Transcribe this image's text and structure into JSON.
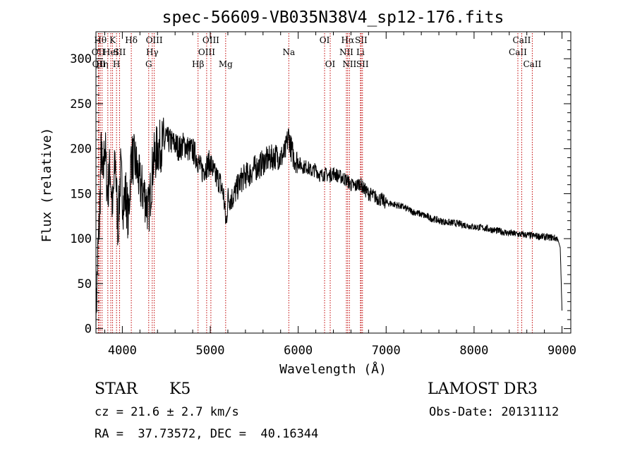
{
  "chart_data": {
    "type": "line",
    "title": "spec-56609-VB035N38V4_sp12-176.fits",
    "xlabel": "Wavelength (Å)",
    "ylabel": "Flux (relative)",
    "xlim": [
      3700,
      9100
    ],
    "ylim": [
      -5,
      330
    ],
    "x_ticks": [
      4000,
      5000,
      6000,
      7000,
      8000,
      9000
    ],
    "y_ticks": [
      0,
      50,
      100,
      150,
      200,
      250,
      300
    ],
    "grid": false,
    "line_color": "#000000",
    "marker_color": "#c00000",
    "series": [
      {
        "x": [
          3700,
          3720,
          3740,
          3760,
          3780,
          3800,
          3830,
          3860,
          3890,
          3920,
          3950,
          3980,
          4010,
          4040,
          4070,
          4100,
          4150,
          4200,
          4250,
          4300,
          4350,
          4400,
          4450,
          4500,
          4550,
          4600,
          4650,
          4700,
          4750,
          4800,
          4850,
          4900,
          4950,
          5000,
          5050,
          5100,
          5150,
          5180,
          5200,
          5250,
          5300,
          5350,
          5400,
          5450,
          5500,
          5550,
          5600,
          5650,
          5700,
          5750,
          5800,
          5850,
          5890,
          5920,
          5950,
          6000,
          6050,
          6100,
          6150,
          6200,
          6250,
          6300,
          6350,
          6400,
          6450,
          6500,
          6550,
          6600,
          6650,
          6700,
          6750,
          6800,
          6850,
          6900,
          6950,
          7000,
          7100,
          7200,
          7300,
          7400,
          7500,
          7600,
          7700,
          7800,
          7900,
          8000,
          8100,
          8200,
          8300,
          8400,
          8500,
          8600,
          8700,
          8800,
          8900,
          8950,
          8980,
          9000
        ],
        "y": [
          10,
          80,
          120,
          200,
          160,
          210,
          150,
          180,
          130,
          190,
          110,
          175,
          140,
          150,
          120,
          190,
          185,
          160,
          150,
          130,
          185,
          200,
          205,
          210,
          208,
          205,
          200,
          205,
          200,
          198,
          190,
          175,
          180,
          185,
          170,
          165,
          150,
          115,
          145,
          145,
          155,
          165,
          170,
          172,
          178,
          180,
          185,
          188,
          190,
          192,
          190,
          195,
          215,
          200,
          190,
          185,
          180,
          180,
          175,
          177,
          170,
          172,
          170,
          173,
          170,
          168,
          165,
          160,
          158,
          162,
          155,
          150,
          148,
          145,
          143,
          140,
          138,
          135,
          130,
          127,
          123,
          120,
          118,
          117,
          115,
          113,
          112,
          110,
          108,
          106,
          105,
          104,
          103,
          102,
          101,
          100,
          90,
          20
        ]
      }
    ],
    "lines": [
      {
        "x": 3727,
        "labels": [
          "OII"
        ],
        "rows": [
          1
        ]
      },
      {
        "x": 3734,
        "labels": [
          "OII"
        ],
        "rows": [
          2
        ]
      },
      {
        "x": 3750,
        "labels": [
          "Hθ"
        ],
        "rows": [
          0
        ]
      },
      {
        "x": 3770,
        "labels": [
          "Hη"
        ],
        "rows": [
          2
        ]
      },
      {
        "x": 3835,
        "labels": [
          "Hη"
        ],
        "rows": []
      },
      {
        "x": 3869,
        "labels": [
          "HeI"
        ],
        "rows": [
          1
        ]
      },
      {
        "x": 3889,
        "labels": [
          "K"
        ],
        "rows": [
          0
        ]
      },
      {
        "x": 3934,
        "labels": [
          "H"
        ],
        "rows": [
          2
        ]
      },
      {
        "x": 3969,
        "labels": [
          "SII"
        ],
        "rows": [
          1
        ]
      },
      {
        "x": 4102,
        "labels": [
          "Hδ"
        ],
        "rows": [
          0
        ]
      },
      {
        "x": 4300,
        "labels": [
          "G"
        ],
        "rows": [
          2
        ]
      },
      {
        "x": 4340,
        "labels": [
          "Hγ"
        ],
        "rows": [
          1
        ]
      },
      {
        "x": 4363,
        "labels": [
          "OIII"
        ],
        "rows": [
          0
        ]
      },
      {
        "x": 4861,
        "labels": [
          "Hβ"
        ],
        "rows": [
          2
        ]
      },
      {
        "x": 4959,
        "labels": [
          "OIII"
        ],
        "rows": [
          1
        ]
      },
      {
        "x": 5007,
        "labels": [
          "OIII"
        ],
        "rows": [
          0
        ]
      },
      {
        "x": 5175,
        "labels": [
          "Mg"
        ],
        "rows": [
          2
        ]
      },
      {
        "x": 5893,
        "labels": [
          "Na"
        ],
        "rows": [
          1
        ]
      },
      {
        "x": 6300,
        "labels": [
          "OI"
        ],
        "rows": [
          0
        ]
      },
      {
        "x": 6364,
        "labels": [
          "OI"
        ],
        "rows": [
          2
        ]
      },
      {
        "x": 6548,
        "labels": [
          "NII"
        ],
        "rows": [
          1
        ]
      },
      {
        "x": 6563,
        "labels": [
          "Hα"
        ],
        "rows": [
          0
        ]
      },
      {
        "x": 6583,
        "labels": [
          "NII"
        ],
        "rows": [
          2
        ]
      },
      {
        "x": 6708,
        "labels": [
          "Li"
        ],
        "rows": [
          1
        ]
      },
      {
        "x": 6716,
        "labels": [
          "SII"
        ],
        "rows": [
          0
        ]
      },
      {
        "x": 6731,
        "labels": [
          "SII"
        ],
        "rows": [
          2
        ]
      },
      {
        "x": 8498,
        "labels": [
          "CaII"
        ],
        "rows": [
          1
        ]
      },
      {
        "x": 8542,
        "labels": [
          "CaII"
        ],
        "rows": [
          0
        ]
      },
      {
        "x": 8662,
        "labels": [
          "CaII"
        ],
        "rows": [
          2
        ]
      }
    ]
  },
  "info": {
    "object_class": "STAR",
    "subclass": "K5",
    "survey": "LAMOST DR3",
    "redshift": "cz = 21.6 ± 2.7 km/s",
    "obs_date": "Obs-Date: 20131112",
    "coords": "RA =  37.73572, DEC =  40.16344"
  }
}
